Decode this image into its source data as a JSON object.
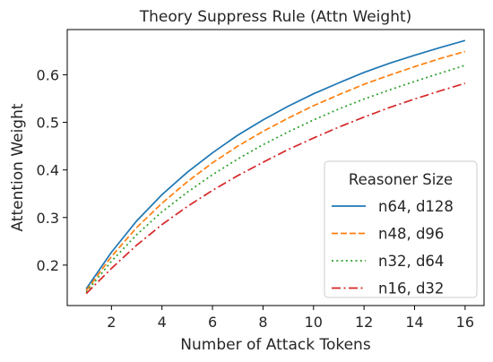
{
  "chart_data": {
    "type": "line",
    "title": "Theory Suppress Rule (Attn Weight)",
    "xlabel": "Number of Attack Tokens",
    "ylabel": "Attention Weight",
    "xlim": [
      0.25,
      16.75
    ],
    "ylim": [
      0.115,
      0.695
    ],
    "xticks": [
      2,
      4,
      6,
      8,
      10,
      12,
      14,
      16
    ],
    "yticks": [
      0.2,
      0.3,
      0.4,
      0.5,
      0.6
    ],
    "grid": false,
    "legend": {
      "title": "Reasoner Size",
      "placement": "lower-right"
    },
    "x": [
      1,
      2,
      3,
      4,
      5,
      6,
      7,
      8,
      9,
      10,
      11,
      12,
      13,
      14,
      15,
      16
    ],
    "series": [
      {
        "name": "n64, d128",
        "color": "#1f77b4",
        "dash": "solid",
        "values": [
          0.15,
          0.227,
          0.293,
          0.348,
          0.395,
          0.436,
          0.473,
          0.505,
          0.534,
          0.56,
          0.583,
          0.605,
          0.624,
          0.641,
          0.657,
          0.672
        ]
      },
      {
        "name": "n48, d96",
        "color": "#ff7f0e",
        "dash": "dashed",
        "values": [
          0.146,
          0.218,
          0.279,
          0.33,
          0.375,
          0.415,
          0.45,
          0.481,
          0.509,
          0.535,
          0.558,
          0.58,
          0.599,
          0.617,
          0.634,
          0.649
        ]
      },
      {
        "name": "n32, d64",
        "color": "#2ca02c",
        "dash": "dotted",
        "values": [
          0.143,
          0.208,
          0.264,
          0.312,
          0.353,
          0.39,
          0.423,
          0.453,
          0.48,
          0.505,
          0.528,
          0.549,
          0.568,
          0.586,
          0.603,
          0.62
        ]
      },
      {
        "name": "n16, d32",
        "color": "#d62728",
        "dash": "dashdot",
        "values": [
          0.14,
          0.193,
          0.242,
          0.285,
          0.323,
          0.357,
          0.388,
          0.416,
          0.443,
          0.467,
          0.49,
          0.511,
          0.531,
          0.549,
          0.566,
          0.582
        ]
      }
    ]
  }
}
